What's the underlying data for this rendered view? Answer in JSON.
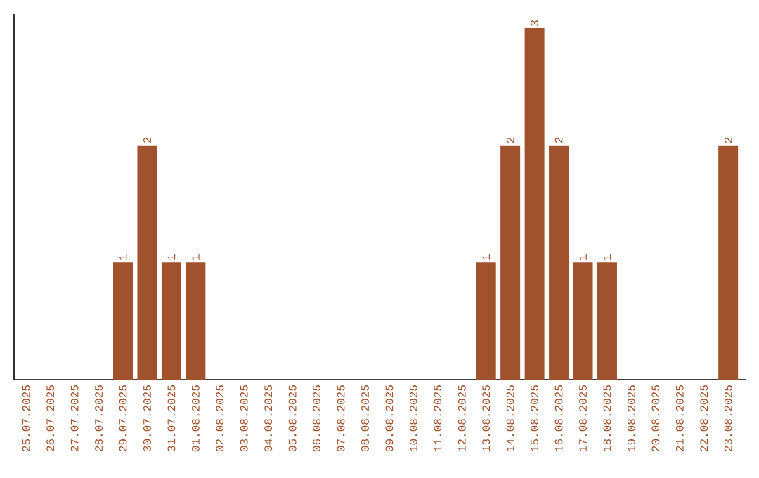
{
  "chart_data": {
    "type": "bar",
    "categories": [
      "25.07.2025",
      "26.07.2025",
      "27.07.2025",
      "28.07.2025",
      "29.07.2025",
      "30.07.2025",
      "31.07.2025",
      "01.08.2025",
      "02.08.2025",
      "03.08.2025",
      "04.08.2025",
      "05.08.2025",
      "06.08.2025",
      "07.08.2025",
      "08.08.2025",
      "09.08.2025",
      "10.08.2025",
      "11.08.2025",
      "12.08.2025",
      "13.08.2025",
      "14.08.2025",
      "15.08.2025",
      "16.08.2025",
      "17.08.2025",
      "18.08.2025",
      "19.08.2025",
      "20.08.2025",
      "21.08.2025",
      "22.08.2025",
      "23.08.2025"
    ],
    "values": [
      0,
      0,
      0,
      0,
      1,
      2,
      1,
      1,
      0,
      0,
      0,
      0,
      0,
      0,
      0,
      0,
      0,
      0,
      0,
      1,
      2,
      3,
      2,
      1,
      1,
      0,
      0,
      0,
      0,
      2
    ],
    "value_labels": [
      null,
      null,
      null,
      null,
      "1",
      "2",
      "1",
      "1",
      null,
      null,
      null,
      null,
      null,
      null,
      null,
      null,
      null,
      null,
      null,
      "1",
      "2",
      "3",
      "2",
      "1",
      "1",
      null,
      null,
      null,
      null,
      "2"
    ],
    "color": "#a0522d",
    "tick_labels": "x",
    "grid": false
  }
}
